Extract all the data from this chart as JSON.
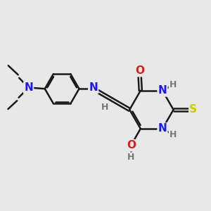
{
  "background_color": "#e8e8e8",
  "bond_color": "#1a1a1a",
  "bond_width": 1.8,
  "atom_colors": {
    "N": "#1a1aee",
    "O": "#cc2222",
    "S": "#cccc00",
    "C": "#1a1a1a",
    "H": "#777777"
  }
}
